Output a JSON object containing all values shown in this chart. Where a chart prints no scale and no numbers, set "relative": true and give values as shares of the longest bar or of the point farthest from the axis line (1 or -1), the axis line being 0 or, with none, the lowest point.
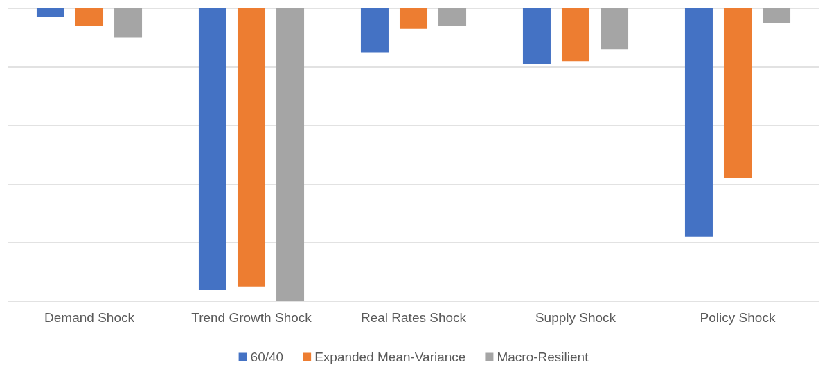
{
  "chart_data": {
    "type": "bar",
    "relative": true,
    "grid": "y",
    "legend": "bottom",
    "categories": [
      "Demand Shock",
      "Trend Growth Shock",
      "Real Rates Shock",
      "Supply Shock",
      "Policy Shock"
    ],
    "series": [
      {
        "name": "60/40",
        "color": "#4472c4",
        "values": [
          -0.03,
          -0.96,
          -0.15,
          -0.19,
          -0.78
        ]
      },
      {
        "name": "Expanded Mean-Variance",
        "color": "#ed7d31",
        "values": [
          -0.06,
          -0.95,
          -0.07,
          -0.18,
          -0.58
        ]
      },
      {
        "name": "Macro-Resilient",
        "color": "#a5a5a5",
        "values": [
          -0.1,
          -1,
          -0.06,
          -0.14,
          -0.05
        ]
      }
    ]
  }
}
